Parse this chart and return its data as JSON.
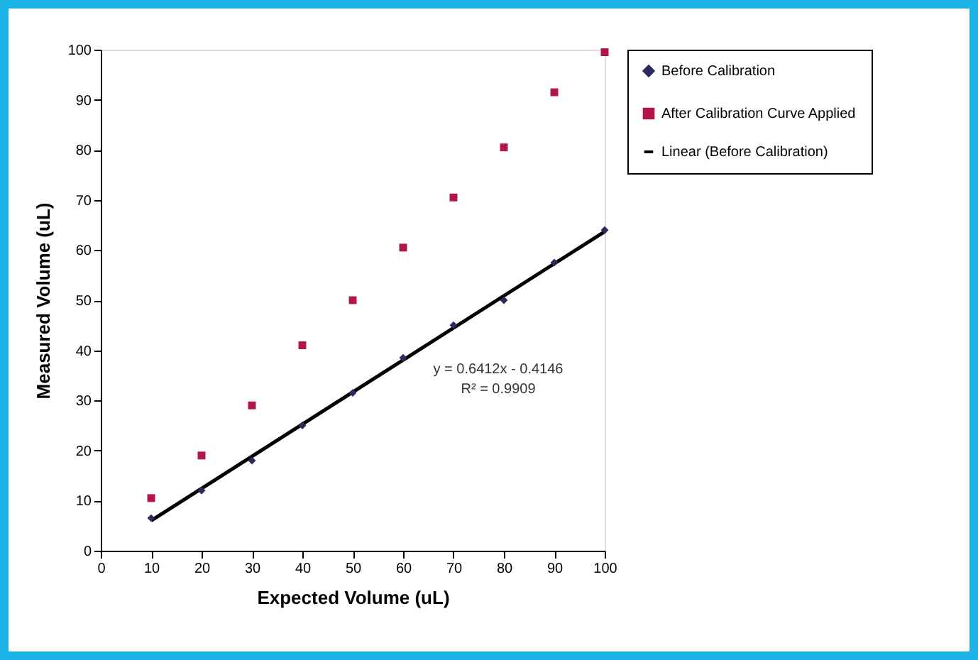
{
  "chart_data": {
    "type": "scatter",
    "xlabel": "Expected Volume (uL)",
    "ylabel": "Measured Volume (uL)",
    "x": [
      10,
      20,
      30,
      40,
      50,
      60,
      70,
      80,
      90,
      100
    ],
    "series": [
      {
        "name": "Before Calibration",
        "color": "#2b2b5e",
        "marker": "diamond",
        "values": [
          6.5,
          12,
          18,
          25,
          31.5,
          38.5,
          45,
          50,
          57.5,
          64
        ]
      },
      {
        "name": "After Calibration Curve Applied",
        "color": "#b0164c",
        "marker": "square",
        "values": [
          10.5,
          19,
          29,
          41,
          50,
          60.5,
          70.5,
          80.5,
          91.5,
          99.5
        ]
      },
      {
        "name": "Linear (Before Calibration)",
        "type": "line",
        "color": "#000000",
        "line_style": "solid",
        "x": [
          10,
          100
        ],
        "values": [
          6.0,
          63.7
        ]
      }
    ],
    "annotations": [
      "y = 0.6412x - 0.4146",
      "R² = 0.9909"
    ],
    "xlim": [
      0,
      100
    ],
    "xticks": [
      0,
      10,
      20,
      30,
      40,
      50,
      60,
      70,
      80,
      90,
      100
    ],
    "ylim": [
      0,
      100
    ],
    "yticks": [
      0,
      10,
      20,
      30,
      40,
      50,
      60,
      70,
      80,
      90,
      100
    ],
    "grid": false,
    "legend": "right"
  }
}
